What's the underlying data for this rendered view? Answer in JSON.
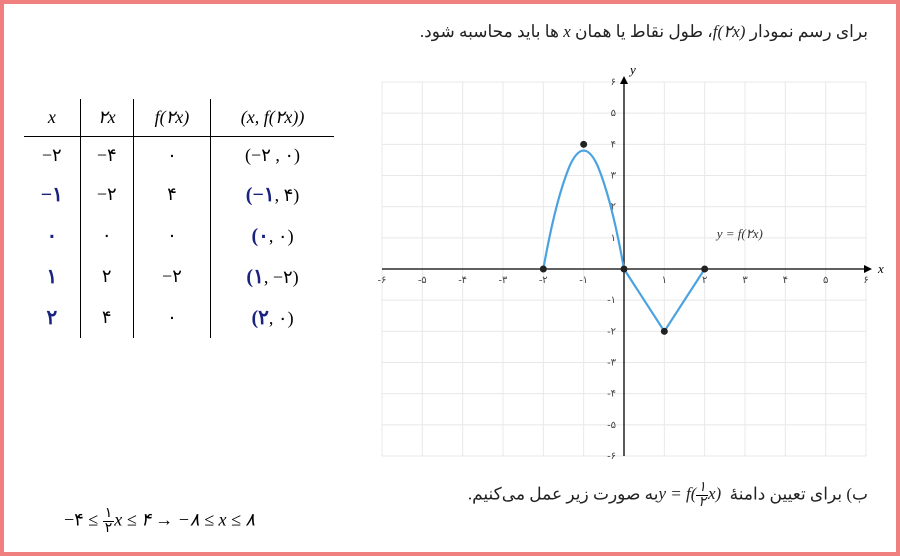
{
  "top_text_pre": "برای رسم نمودار ",
  "top_text_math": "f(۲x)",
  "top_text_mid": "، طول نقاط یا همان ",
  "top_text_math2": "x",
  "top_text_post": " ها باید محاسبه شود.",
  "bottom_text_pre": "ب) برای تعیین دامنهٔ ",
  "bottom_text_math_y": "y = f(",
  "bottom_text_math_frac_num": "۱",
  "bottom_text_math_frac_den": "۲",
  "bottom_text_math_close": "x)",
  "bottom_text_post": " به صورت زیر عمل می‌کنیم.",
  "bottom_formula_p1": "−۴ ≤ ",
  "bottom_formula_frac_num": "۱",
  "bottom_formula_frac_den": "۲",
  "bottom_formula_p2": "x ≤ ۴ → −۸ ≤ x ≤ ۸",
  "table": {
    "headers": [
      "x",
      "۲x",
      "f(۲x)",
      "(x, f(۲x))"
    ],
    "rows": [
      {
        "x": "−۲",
        "x2": "−۴",
        "f": "۰",
        "pt_pre": "(−۲ , ۰)",
        "hand_x": "",
        "hand_pt": ""
      },
      {
        "x": "",
        "x2": "−۲",
        "f": "۴",
        "pt_pre": "",
        "hand_x": "−۱",
        "hand_pt_open": "(−۱",
        "hand_pt_rest": ", ۴)"
      },
      {
        "x": "",
        "x2": "۰",
        "f": "۰",
        "pt_pre": "",
        "hand_x": "۰",
        "hand_pt_open": "(۰",
        "hand_pt_rest": ", ۰)"
      },
      {
        "x": "",
        "x2": "۲",
        "f": "−۲",
        "pt_pre": "",
        "hand_x": "۱",
        "hand_pt_open": "(۱",
        "hand_pt_rest": ", −۲)"
      },
      {
        "x": "",
        "x2": "۴",
        "f": "۰",
        "pt_pre": "",
        "hand_x": "۲",
        "hand_pt_open": "(۲",
        "hand_pt_rest": ", ۰)"
      }
    ]
  },
  "chart": {
    "xlim": [
      -6,
      6
    ],
    "ylim": [
      -6,
      6
    ],
    "grid_color": "#e8e8e8",
    "axis_color": "#000000",
    "curve_color": "#4aa3e0",
    "point_color": "#222222",
    "bg_color": "#ffffff",
    "x_label": "x",
    "y_label": "y",
    "curve_label": "y = f(۲x)",
    "xticks": [
      "-۶",
      "-۵",
      "-۴",
      "-۳",
      "-۲",
      "-۱",
      "",
      "۱",
      "۲",
      "۳",
      "۴",
      "۵",
      "۶"
    ],
    "yticks": [
      "-۶",
      "-۵",
      "-۴",
      "-۳",
      "-۲",
      "-۱",
      "",
      "۱",
      "۲",
      "۳",
      "۴",
      "۵",
      "۶"
    ],
    "points": [
      [
        -2,
        0
      ],
      [
        -1,
        4
      ],
      [
        0,
        0
      ],
      [
        1,
        -2
      ],
      [
        2,
        0
      ]
    ]
  }
}
